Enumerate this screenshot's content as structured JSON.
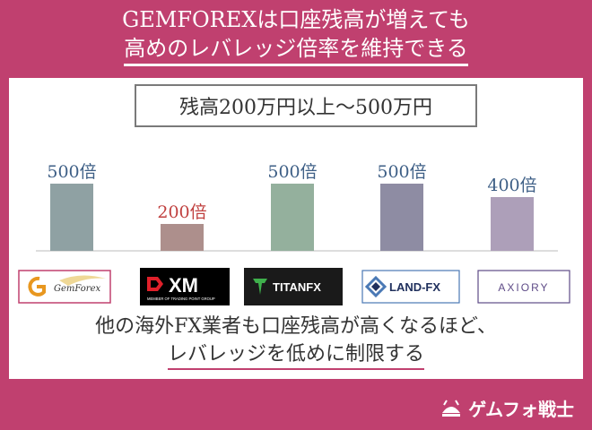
{
  "header": {
    "line1": "GEMFOREXは口座残高が増えても",
    "line2": "高めのレバレッジ倍率を維持できる"
  },
  "range_label": "残高200万円以上～500万円",
  "chart_data": {
    "type": "bar",
    "title": "",
    "categories": [
      "GemForex",
      "XM",
      "TITANFX",
      "LAND-FX",
      "AXIORY"
    ],
    "values": [
      500,
      200,
      500,
      500,
      400
    ],
    "data_labels": [
      "500倍",
      "200倍",
      "500倍",
      "500倍",
      "400倍"
    ],
    "unit": "倍",
    "bar_colors": [
      "#8fa1a3",
      "#ad8f8c",
      "#94b09d",
      "#8e8ca3",
      "#ad9fb9"
    ],
    "label_colors": [
      "#3e5f86",
      "#c0403f",
      "#3e5f86",
      "#3e5f86",
      "#3e5f86"
    ],
    "ylim": [
      0,
      500
    ],
    "grid": false
  },
  "logos": [
    {
      "name": "GemForex",
      "text": "GemForex",
      "bg": "#ffffff",
      "fg": "#333333",
      "border": "#c0406f",
      "accent": "#e8971f"
    },
    {
      "name": "XM",
      "text": "XM",
      "sub": "MEMBER OF TRADING POINT GROUP",
      "bg": "#000000",
      "fg": "#ffffff",
      "accent": "#e0202a"
    },
    {
      "name": "TITANFX",
      "text": "TITANFX",
      "bg": "#1a1a1a",
      "fg": "#ffffff",
      "accent": "#3fb04c"
    },
    {
      "name": "LAND-FX",
      "text": "LAND-FX",
      "bg": "#ffffff",
      "fg": "#20305d",
      "border": "#4a79b5",
      "accent": "#4a79b5"
    },
    {
      "name": "AXIORY",
      "text": "AXIORY",
      "bg": "#ffffff",
      "fg": "#5e4b87",
      "border": "#5e4b87"
    }
  ],
  "bottom": {
    "line1": "他の海外FX業者も口座残高が高くなるほど、",
    "line2": "レバレッジを低めに制限する"
  },
  "brand": {
    "name": "ゲムフォ戦士"
  }
}
